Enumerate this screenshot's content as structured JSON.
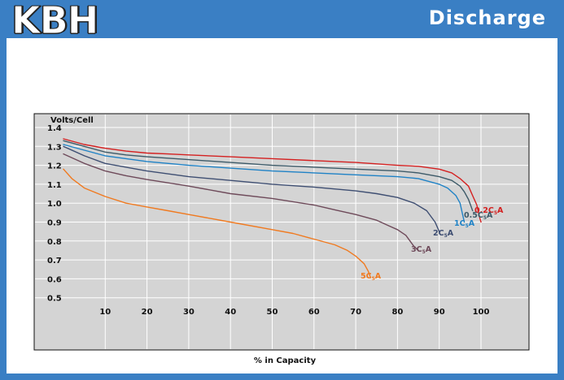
{
  "header": {
    "logo": "KBH",
    "title": "Discharge"
  },
  "colors": {
    "header_blue": "#3a7fc4",
    "plot_bg": "#d4d4d4"
  },
  "chart_data": {
    "type": "line",
    "ylabel": "Volts/Cell",
    "xlabel": "% in Capacity",
    "xlim": [
      0,
      110
    ],
    "ylim": [
      0.5,
      1.4
    ],
    "x_ticks": [
      10,
      20,
      30,
      40,
      50,
      60,
      70,
      80,
      90,
      100
    ],
    "y_ticks": [
      0.5,
      0.6,
      0.7,
      0.8,
      0.9,
      1.0,
      1.1,
      1.2,
      1.3,
      1.4
    ],
    "y_tick_labels": [
      "0.5",
      "0.6",
      "0.7",
      "0.8",
      "0.9",
      "1.0",
      "1.1",
      "1.2",
      "1.3",
      "1.4"
    ],
    "grid": true,
    "series": [
      {
        "name": "0.2C",
        "label_sub": "5",
        "label_suffix": "A",
        "color": "#d42020",
        "x": [
          0,
          5,
          10,
          15,
          20,
          25,
          30,
          40,
          50,
          60,
          70,
          80,
          85,
          90,
          93,
          95,
          97,
          98,
          99,
          99.5,
          100
        ],
        "y": [
          1.34,
          1.31,
          1.29,
          1.275,
          1.265,
          1.26,
          1.255,
          1.245,
          1.235,
          1.225,
          1.215,
          1.2,
          1.195,
          1.18,
          1.16,
          1.13,
          1.09,
          1.04,
          0.99,
          0.94,
          0.9
        ]
      },
      {
        "name": "0.5C",
        "label_sub": "5",
        "label_suffix": "A",
        "color": "#3d5a68",
        "x": [
          0,
          5,
          10,
          15,
          20,
          30,
          40,
          50,
          60,
          70,
          80,
          85,
          90,
          93,
          95,
          96,
          97,
          97.5,
          98
        ],
        "y": [
          1.33,
          1.3,
          1.27,
          1.255,
          1.245,
          1.23,
          1.215,
          1.2,
          1.19,
          1.18,
          1.17,
          1.16,
          1.14,
          1.12,
          1.09,
          1.06,
          1.02,
          0.99,
          0.96
        ]
      },
      {
        "name": "1C",
        "label_sub": "5",
        "label_suffix": "A",
        "color": "#1f82c6",
        "x": [
          0,
          5,
          10,
          15,
          20,
          30,
          40,
          50,
          60,
          70,
          80,
          85,
          90,
          92,
          94,
          95,
          95.5,
          96
        ],
        "y": [
          1.31,
          1.28,
          1.25,
          1.235,
          1.22,
          1.2,
          1.185,
          1.17,
          1.16,
          1.15,
          1.14,
          1.13,
          1.1,
          1.08,
          1.04,
          1.0,
          0.95,
          0.9
        ]
      },
      {
        "name": "2C",
        "label_sub": "5",
        "label_suffix": "A",
        "color": "#3e4e72",
        "x": [
          0,
          5,
          10,
          15,
          20,
          30,
          40,
          50,
          60,
          70,
          75,
          80,
          84,
          87,
          89,
          90
        ],
        "y": [
          1.3,
          1.25,
          1.21,
          1.19,
          1.17,
          1.14,
          1.12,
          1.1,
          1.085,
          1.065,
          1.05,
          1.03,
          1.0,
          0.96,
          0.9,
          0.85
        ]
      },
      {
        "name": "3C",
        "label_sub": "5",
        "label_suffix": "A",
        "color": "#6e4a5a",
        "x": [
          0,
          5,
          10,
          15,
          20,
          30,
          40,
          50,
          60,
          65,
          70,
          75,
          78,
          80,
          82,
          83,
          84,
          85
        ],
        "y": [
          1.26,
          1.21,
          1.17,
          1.145,
          1.125,
          1.09,
          1.05,
          1.025,
          0.99,
          0.965,
          0.94,
          0.91,
          0.88,
          0.86,
          0.83,
          0.8,
          0.77,
          0.75
        ]
      },
      {
        "name": "5C",
        "label_sub": "5",
        "label_suffix": "A",
        "color": "#f07a20",
        "x": [
          0,
          2,
          5,
          10,
          15,
          20,
          25,
          30,
          40,
          50,
          55,
          60,
          65,
          68,
          70,
          72,
          73,
          73.5
        ],
        "y": [
          1.18,
          1.13,
          1.08,
          1.035,
          1.0,
          0.98,
          0.96,
          0.94,
          0.9,
          0.86,
          0.84,
          0.81,
          0.78,
          0.75,
          0.72,
          0.68,
          0.64,
          0.61
        ]
      }
    ]
  }
}
